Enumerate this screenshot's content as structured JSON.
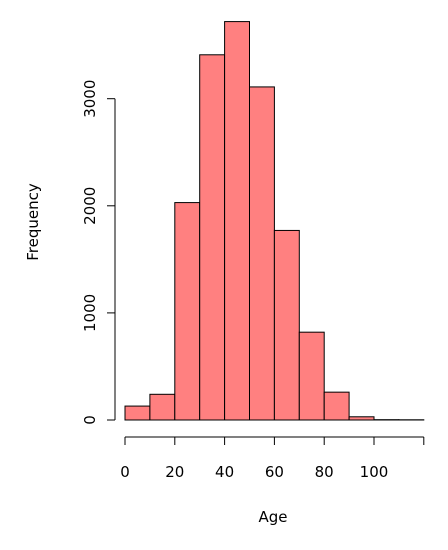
{
  "chart_data": {
    "type": "bar",
    "subtype": "histogram",
    "title": "",
    "xlabel": "Age",
    "ylabel": "Frequency",
    "bins": [
      {
        "start": 0,
        "end": 10,
        "count": 130
      },
      {
        "start": 10,
        "end": 20,
        "count": 240
      },
      {
        "start": 20,
        "end": 30,
        "count": 2030
      },
      {
        "start": 30,
        "end": 40,
        "count": 3410
      },
      {
        "start": 40,
        "end": 50,
        "count": 3720
      },
      {
        "start": 50,
        "end": 60,
        "count": 3110
      },
      {
        "start": 60,
        "end": 70,
        "count": 1770
      },
      {
        "start": 70,
        "end": 80,
        "count": 820
      },
      {
        "start": 80,
        "end": 90,
        "count": 260
      },
      {
        "start": 90,
        "end": 100,
        "count": 30
      },
      {
        "start": 100,
        "end": 110,
        "count": 3
      },
      {
        "start": 110,
        "end": 120,
        "count": 2
      }
    ],
    "xlim": [
      0,
      120
    ],
    "ylim": [
      0,
      3720
    ],
    "x_ticks": [
      0,
      20,
      40,
      60,
      80,
      100
    ],
    "x_tick_labels": [
      "0",
      "20",
      "40",
      "60",
      "80",
      "100"
    ],
    "y_ticks": [
      0,
      1000,
      2000,
      3000
    ],
    "y_tick_labels": [
      "0",
      "1000",
      "2000",
      "3000"
    ],
    "bar_color": "#ff8080",
    "edge_color": "#000000",
    "grid": false,
    "legend": "none"
  }
}
